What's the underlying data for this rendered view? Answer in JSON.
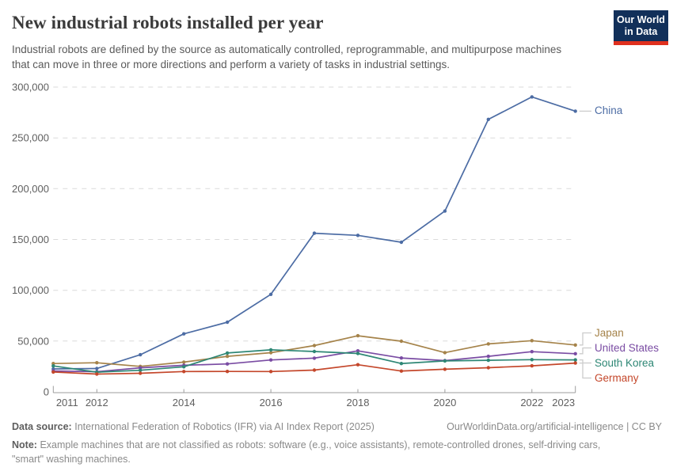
{
  "header": {
    "logo_line1": "Our World",
    "logo_line2": "in Data",
    "logo": {
      "bg": "#12305a",
      "accent": "#e0301e"
    }
  },
  "chart_data": {
    "type": "line",
    "title": "New industrial robots installed per year",
    "subtitle": "Industrial robots are defined by the source as automatically controlled, reprogrammable, and multipurpose machines that can move in three or more directions and perform a variety of tasks in industrial settings.",
    "x": [
      2011,
      2012,
      2013,
      2014,
      2015,
      2016,
      2017,
      2018,
      2019,
      2020,
      2021,
      2022,
      2023
    ],
    "xticks": [
      2011,
      2012,
      2014,
      2016,
      2018,
      2020,
      2022,
      2023
    ],
    "yticks": [
      0,
      50000,
      100000,
      150000,
      200000,
      250000,
      300000
    ],
    "ylim": [
      0,
      300000
    ],
    "ylabel": "",
    "xlabel": "",
    "grid": "dashed-horizontal",
    "legend_position": "right-end-labels",
    "series": [
      {
        "name": "China",
        "color": "#4c6ca4",
        "values": [
          22577,
          22987,
          36560,
          57096,
          68556,
          96000,
          156176,
          154032,
          147300,
          178000,
          268200,
          290300,
          276300
        ]
      },
      {
        "name": "Japan",
        "color": "#a5834a",
        "values": [
          27894,
          28680,
          25110,
          29297,
          35023,
          38586,
          45566,
          55240,
          49908,
          38653,
          47182,
          50413,
          46106
        ]
      },
      {
        "name": "United States",
        "color": "#7a4ca3",
        "values": [
          20555,
          19883,
          23679,
          26202,
          27504,
          31404,
          33192,
          40373,
          33378,
          30787,
          34987,
          39576,
          37587
        ]
      },
      {
        "name": "South Korea",
        "color": "#2e8775",
        "values": [
          25536,
          19424,
          21307,
          24721,
          38285,
          41373,
          39732,
          37807,
          27873,
          30506,
          31083,
          31716,
          31444
        ]
      },
      {
        "name": "Germany",
        "color": "#c4472b",
        "values": [
          19533,
          17528,
          18297,
          20051,
          20105,
          20039,
          21404,
          26723,
          20473,
          22302,
          23777,
          25636,
          28355
        ]
      }
    ]
  },
  "footer": {
    "datasource_label": "Data source:",
    "datasource_text": "International Federation of Robotics (IFR) via AI Index Report (2025)",
    "link": "OurWorldinData.org/artificial-intelligence | CC BY",
    "note_label": "Note:",
    "note_text": "Example machines that are not classified as robots: software (e.g., voice assistants), remote-controlled drones, self-driving cars, \"smart\" washing machines."
  }
}
